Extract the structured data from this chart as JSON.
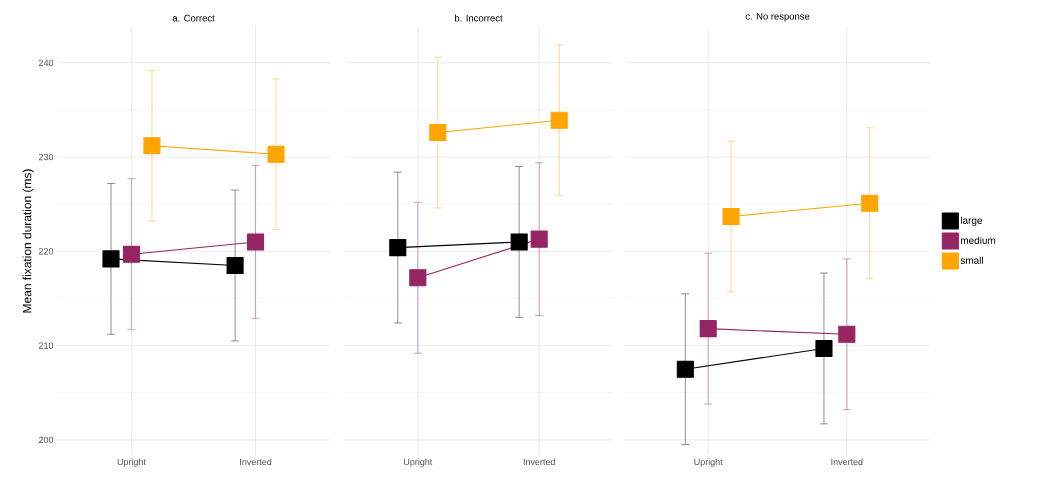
{
  "chart_data": [
    {
      "type": "line",
      "title": "a. Correct",
      "ylabel": "Mean fixation duration (ms)",
      "categories": [
        "Upright",
        "Inverted"
      ],
      "ylim": [
        198.4,
        243.8
      ],
      "yticks": [
        200,
        210,
        220,
        230,
        240
      ],
      "grid": true,
      "marker": "square",
      "legend": false,
      "series": [
        {
          "color": "#000000",
          "values": [
            219.2,
            218.5
          ],
          "errors": [
            8.0,
            8.0
          ]
        },
        {
          "color": "#952563",
          "values": [
            219.7,
            221.0
          ],
          "errors": [
            8.0,
            8.1
          ]
        },
        {
          "color": "#ffa500",
          "values": [
            231.2,
            230.3
          ],
          "errors": [
            8.0,
            8.0
          ]
        }
      ]
    },
    {
      "type": "line",
      "title": "b. Incorrect",
      "categories": [
        "Upright",
        "Inverted"
      ],
      "ylim": [
        198.4,
        243.8
      ],
      "yticks": [
        200,
        210,
        220,
        230,
        240
      ],
      "tick_labels": "x",
      "grid": true,
      "marker": "square",
      "legend": false,
      "series": [
        {
          "color": "#000000",
          "values": [
            220.4,
            221.0
          ],
          "errors": [
            8.0,
            8.0
          ]
        },
        {
          "color": "#952563",
          "values": [
            217.2,
            221.3
          ],
          "errors": [
            8.0,
            8.1
          ]
        },
        {
          "color": "#ffa500",
          "values": [
            232.6,
            233.9
          ],
          "errors": [
            8.0,
            8.0
          ]
        }
      ]
    },
    {
      "type": "line",
      "title": "c. No response",
      "categories": [
        "Upright",
        "Inverted"
      ],
      "ylim": [
        198.4,
        243.8
      ],
      "yticks": [
        200,
        210,
        220,
        230,
        240
      ],
      "tick_labels": "x",
      "grid": true,
      "marker": "square",
      "legend": "right",
      "series": [
        {
          "name": "large",
          "color": "#000000",
          "values": [
            207.5,
            209.7
          ],
          "errors": [
            8.0,
            8.0
          ]
        },
        {
          "name": "medium",
          "color": "#952563",
          "values": [
            211.8,
            211.2
          ],
          "errors": [
            8.0,
            8.0
          ]
        },
        {
          "name": "small",
          "color": "#ffa500",
          "values": [
            223.7,
            225.1
          ],
          "errors": [
            8.0,
            8.0
          ]
        }
      ]
    }
  ]
}
